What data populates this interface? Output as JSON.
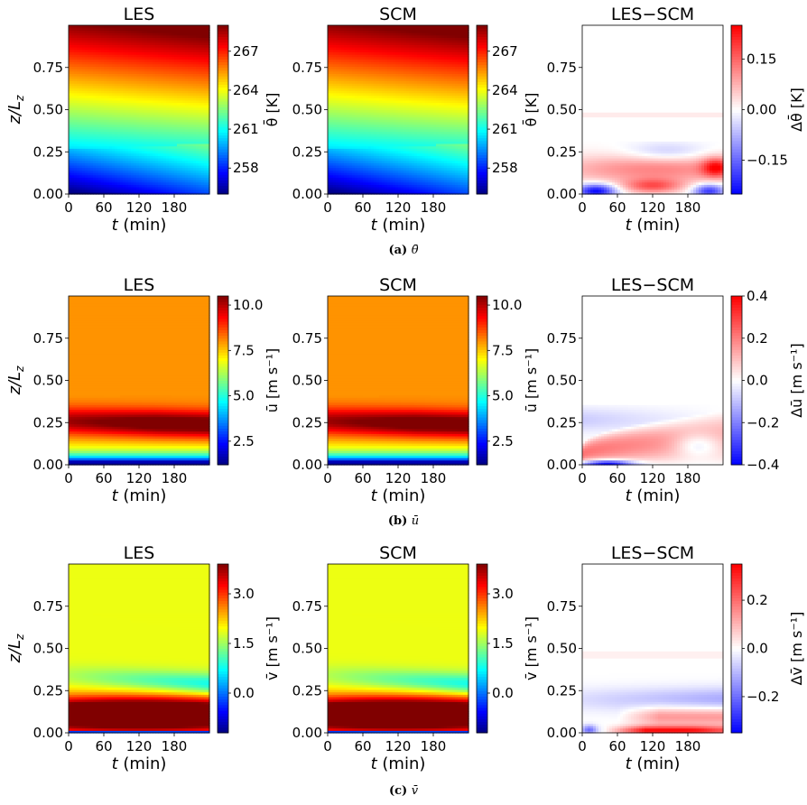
{
  "figure": {
    "rows": [
      {
        "caption_label": "(a)",
        "caption_var": "θ̄",
        "panels": [
          {
            "title": "LES",
            "kind": "field",
            "field": "theta",
            "cbar": {
              "label": "θ̄ [K]",
              "ticks": [
                258,
                261,
                264,
                267
              ],
              "range": [
                256,
                269
              ],
              "cmap": "jet"
            }
          },
          {
            "title": "SCM",
            "kind": "field",
            "field": "theta",
            "cbar": {
              "label": "θ̄ [K]",
              "ticks": [
                258,
                261,
                264,
                267
              ],
              "range": [
                256,
                269
              ],
              "cmap": "jet"
            }
          },
          {
            "title": "LES−SCM",
            "kind": "diff",
            "field": "dtheta",
            "cbar": {
              "label": "Δθ̄ [K]",
              "ticks": [
                0.15,
                0.0,
                -0.15
              ],
              "tick_labels": [
                "0.15",
                "0.00",
                "−0.15"
              ],
              "range": [
                -0.25,
                0.25
              ],
              "cmap": "bwr"
            }
          }
        ]
      },
      {
        "caption_label": "(b)",
        "caption_var": "ū",
        "panels": [
          {
            "title": "LES",
            "kind": "field",
            "field": "u",
            "cbar": {
              "label": "ū [m s⁻¹]",
              "ticks": [
                2.5,
                5.0,
                7.5,
                10.0
              ],
              "tick_labels": [
                "2.5",
                "5.0",
                "7.5",
                "10.0"
              ],
              "range": [
                1.2,
                10.5
              ],
              "cmap": "jet"
            }
          },
          {
            "title": "SCM",
            "kind": "field",
            "field": "u",
            "cbar": {
              "label": "ū [m s⁻¹]",
              "ticks": [
                2.5,
                5.0,
                7.5,
                10.0
              ],
              "tick_labels": [
                "2.5",
                "5.0",
                "7.5",
                "10.0"
              ],
              "range": [
                1.2,
                10.5
              ],
              "cmap": "jet"
            }
          },
          {
            "title": "LES−SCM",
            "kind": "diff",
            "field": "du",
            "cbar": {
              "label": "Δū [m s⁻¹]",
              "ticks": [
                0.4,
                0.2,
                0.0,
                -0.2,
                -0.4
              ],
              "tick_labels": [
                "0.4",
                "0.2",
                "0.0",
                "−0.2",
                "−0.4"
              ],
              "range": [
                -0.4,
                0.4
              ],
              "cmap": "bwr"
            }
          }
        ]
      },
      {
        "caption_label": "(c)",
        "caption_var": "v̄",
        "panels": [
          {
            "title": "LES",
            "kind": "field",
            "field": "v",
            "cbar": {
              "label": "v̄ [m s⁻¹]",
              "ticks": [
                0.0,
                1.5,
                3.0
              ],
              "tick_labels": [
                "0.0",
                "1.5",
                "3.0"
              ],
              "range": [
                -1.2,
                3.9
              ],
              "cmap": "jet"
            }
          },
          {
            "title": "SCM",
            "kind": "field",
            "field": "v",
            "cbar": {
              "label": "v̄ [m s⁻¹]",
              "ticks": [
                0.0,
                1.5,
                3.0
              ],
              "tick_labels": [
                "0.0",
                "1.5",
                "3.0"
              ],
              "range": [
                -1.2,
                3.9
              ],
              "cmap": "jet"
            }
          },
          {
            "title": "LES−SCM",
            "kind": "diff",
            "field": "dv",
            "cbar": {
              "label": "Δv̄ [m s⁻¹]",
              "ticks": [
                0.2,
                0.0,
                -0.2
              ],
              "tick_labels": [
                "0.2",
                "0.0",
                "−0.2"
              ],
              "range": [
                -0.35,
                0.35
              ],
              "cmap": "bwr"
            }
          }
        ]
      }
    ],
    "x_axis": {
      "label": "t (min)",
      "ticks": [
        0,
        60,
        120,
        180
      ],
      "range": [
        0,
        240
      ]
    },
    "y_axis": {
      "label": "z/L",
      "label_sub": "z",
      "ticks": [
        0.0,
        0.25,
        0.5,
        0.75
      ],
      "tick_labels": [
        "0.00",
        "0.25",
        "0.50",
        "0.75"
      ],
      "range": [
        0,
        1
      ]
    }
  },
  "chart_data": {
    "type": "heatmap",
    "title": "",
    "xlabel": "t (min)",
    "ylabel": "z/Lz",
    "xlim": [
      0,
      240
    ],
    "ylim": [
      0,
      1
    ],
    "subplots": [
      {
        "row": "a",
        "panels": [
          "LES",
          "SCM",
          "LES−SCM"
        ],
        "variable": "θ̄",
        "units": "K",
        "colorbar_range": [
          256,
          269
        ],
        "diff_range": [
          -0.25,
          0.25
        ]
      },
      {
        "row": "b",
        "panels": [
          "LES",
          "SCM",
          "LES−SCM"
        ],
        "variable": "ū",
        "units": "m s⁻¹",
        "colorbar_range": [
          1.2,
          10.5
        ],
        "diff_range": [
          -0.4,
          0.4
        ]
      },
      {
        "row": "c",
        "panels": [
          "LES",
          "SCM",
          "LES−SCM"
        ],
        "variable": "v̄",
        "units": "m s⁻¹",
        "colorbar_range": [
          -1.2,
          3.9
        ],
        "diff_range": [
          -0.35,
          0.35
        ]
      }
    ]
  }
}
